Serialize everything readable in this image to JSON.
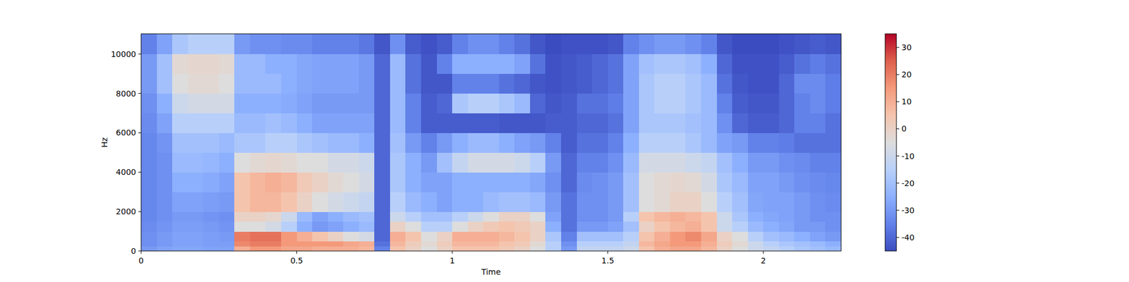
{
  "chart_data": {
    "type": "heatmap",
    "xlabel": "Time",
    "ylabel": "Hz",
    "xlim": [
      0,
      2.25
    ],
    "ylim": [
      0,
      11025
    ],
    "xticks": [
      0,
      0.5,
      1,
      1.5,
      2
    ],
    "yticks": [
      0,
      2000,
      4000,
      6000,
      8000,
      10000
    ],
    "x_edges": [
      0,
      0.05,
      0.1,
      0.15,
      0.2,
      0.25,
      0.3,
      0.35,
      0.4,
      0.45,
      0.5,
      0.55,
      0.6,
      0.65,
      0.7,
      0.75,
      0.8,
      0.85,
      0.9,
      0.95,
      1,
      1.05,
      1.1,
      1.15,
      1.2,
      1.25,
      1.3,
      1.35,
      1.4,
      1.45,
      1.5,
      1.55,
      1.6,
      1.65,
      1.7,
      1.75,
      1.8,
      1.85,
      1.9,
      1.95,
      2,
      2.05,
      2.1,
      2.15,
      2.2,
      2.25
    ],
    "y_edges": [
      0,
      250,
      500,
      1000,
      1500,
      2000,
      3000,
      4000,
      5000,
      6000,
      7000,
      8000,
      9000,
      10000,
      11025
    ],
    "cells": [
      [
        -30,
        -28,
        -27,
        -27,
        -28,
        -28,
        10,
        15,
        15,
        12,
        12,
        10,
        10,
        10,
        8,
        -35,
        5,
        0,
        -5,
        0,
        5,
        5,
        5,
        3,
        0,
        -5,
        -15,
        -30,
        -12,
        -12,
        -12,
        -10,
        5,
        10,
        12,
        12,
        8,
        0,
        -5,
        -10,
        -12,
        -15,
        -18,
        -20,
        -22
      ],
      [
        -32,
        -30,
        -28,
        -28,
        -29,
        -29,
        18,
        20,
        20,
        15,
        15,
        15,
        15,
        12,
        10,
        -38,
        8,
        2,
        -3,
        2,
        8,
        8,
        8,
        5,
        3,
        -3,
        -15,
        -32,
        -15,
        -15,
        -15,
        -12,
        8,
        12,
        15,
        15,
        10,
        2,
        -3,
        -10,
        -15,
        -18,
        -20,
        -22,
        -25
      ],
      [
        -32,
        -30,
        -28,
        -28,
        -29,
        -30,
        20,
        22,
        22,
        15,
        10,
        5,
        0,
        -5,
        -8,
        -40,
        10,
        5,
        -5,
        0,
        10,
        10,
        10,
        8,
        5,
        0,
        -18,
        -35,
        -20,
        -20,
        -20,
        -15,
        5,
        10,
        15,
        18,
        12,
        0,
        -5,
        -15,
        -20,
        -22,
        -25,
        -28,
        -30
      ],
      [
        -33,
        -31,
        -29,
        -29,
        -30,
        -31,
        -5,
        -5,
        -8,
        -15,
        -25,
        -30,
        -28,
        -25,
        -22,
        -40,
        0,
        -5,
        -15,
        -15,
        -5,
        0,
        3,
        5,
        3,
        0,
        -25,
        -38,
        -30,
        -30,
        -28,
        -20,
        0,
        5,
        8,
        10,
        5,
        -10,
        -15,
        -22,
        -25,
        -27,
        -30,
        -30,
        -32
      ],
      [
        -34,
        -32,
        -30,
        -30,
        -31,
        -32,
        0,
        0,
        -2,
        -10,
        -22,
        -28,
        -25,
        -22,
        -20,
        -40,
        -10,
        -15,
        -20,
        -20,
        -15,
        -10,
        -5,
        0,
        0,
        -5,
        -28,
        -38,
        -32,
        -32,
        -30,
        -15,
        5,
        8,
        10,
        8,
        5,
        -10,
        -18,
        -25,
        -27,
        -28,
        -30,
        -32,
        -32
      ],
      [
        -34,
        -32,
        -28,
        -28,
        -29,
        -30,
        5,
        8,
        8,
        5,
        0,
        -5,
        -8,
        -10,
        -12,
        -40,
        -15,
        -22,
        -25,
        -28,
        -25,
        -25,
        -22,
        -20,
        -20,
        -22,
        -30,
        -38,
        -32,
        -32,
        -30,
        -20,
        -5,
        -3,
        0,
        0,
        -5,
        -15,
        -20,
        -27,
        -28,
        -28,
        -30,
        -32,
        -33
      ],
      [
        -34,
        -32,
        -25,
        -25,
        -26,
        -28,
        5,
        8,
        10,
        8,
        3,
        0,
        -3,
        -5,
        -8,
        -40,
        -18,
        -25,
        -28,
        -28,
        -25,
        -25,
        -25,
        -25,
        -25,
        -27,
        -32,
        -40,
        -33,
        -32,
        -30,
        -20,
        -5,
        -3,
        -2,
        -3,
        -8,
        -18,
        -22,
        -28,
        -28,
        -30,
        -32,
        -33,
        -34
      ],
      [
        -34,
        -32,
        -22,
        -22,
        -23,
        -25,
        -5,
        -3,
        -2,
        -3,
        -5,
        -5,
        -8,
        -8,
        -10,
        -40,
        -18,
        -25,
        -30,
        -20,
        -12,
        -8,
        -8,
        -8,
        -10,
        -15,
        -30,
        -40,
        -35,
        -35,
        -32,
        -22,
        -8,
        -8,
        -8,
        -10,
        -12,
        -20,
        -25,
        -30,
        -30,
        -32,
        -33,
        -35,
        -35
      ],
      [
        -34,
        -31,
        -20,
        -20,
        -20,
        -22,
        -18,
        -18,
        -15,
        -15,
        -18,
        -20,
        -22,
        -22,
        -25,
        -40,
        -20,
        -30,
        -35,
        -30,
        -25,
        -22,
        -22,
        -25,
        -28,
        -30,
        -35,
        -42,
        -38,
        -38,
        -35,
        -25,
        -15,
        -15,
        -15,
        -18,
        -22,
        -28,
        -30,
        -35,
        -35,
        -36,
        -38,
        -38,
        -38
      ],
      [
        -33,
        -28,
        -15,
        -15,
        -15,
        -15,
        -22,
        -22,
        -20,
        -22,
        -25,
        -28,
        -28,
        -28,
        -28,
        -40,
        -22,
        -35,
        -42,
        -42,
        -42,
        -42,
        -42,
        -43,
        -43,
        -43,
        -42,
        -42,
        -40,
        -40,
        -38,
        -28,
        -18,
        -18,
        -18,
        -20,
        -22,
        -32,
        -40,
        -42,
        -42,
        -40,
        -35,
        -35,
        -38
      ],
      [
        -32,
        -25,
        -10,
        -8,
        -8,
        -8,
        -25,
        -25,
        -25,
        -26,
        -28,
        -30,
        -30,
        -30,
        -30,
        -40,
        -22,
        -35,
        -42,
        -40,
        -18,
        -15,
        -15,
        -18,
        -22,
        -40,
        -43,
        -42,
        -38,
        -38,
        -36,
        -28,
        -18,
        -15,
        -15,
        -18,
        -22,
        -35,
        -42,
        -43,
        -43,
        -40,
        -35,
        -33,
        -36
      ],
      [
        -30,
        -20,
        -5,
        -3,
        -3,
        -5,
        -22,
        -22,
        -22,
        -25,
        -27,
        -28,
        -28,
        -28,
        -30,
        -40,
        -22,
        -38,
        -43,
        -43,
        -35,
        -35,
        -35,
        -38,
        -40,
        -43,
        -44,
        -43,
        -42,
        -40,
        -38,
        -28,
        -18,
        -15,
        -15,
        -18,
        -22,
        -38,
        -43,
        -44,
        -44,
        -40,
        -33,
        -33,
        -36
      ],
      [
        -30,
        -20,
        -3,
        -2,
        -2,
        -3,
        -22,
        -22,
        -25,
        -25,
        -27,
        -28,
        -28,
        -28,
        -30,
        -40,
        -22,
        -38,
        -43,
        -35,
        -25,
        -25,
        -25,
        -25,
        -28,
        -38,
        -44,
        -43,
        -42,
        -40,
        -38,
        -28,
        -20,
        -18,
        -18,
        -20,
        -25,
        -40,
        -44,
        -44,
        -44,
        -42,
        -38,
        -36,
        -38
      ],
      [
        -35,
        -28,
        -18,
        -15,
        -15,
        -15,
        -30,
        -32,
        -32,
        -33,
        -33,
        -35,
        -35,
        -35,
        -37,
        -43,
        -32,
        -42,
        -44,
        -42,
        -35,
        -32,
        -32,
        -35,
        -38,
        -43,
        -45,
        -44,
        -44,
        -44,
        -43,
        -35,
        -32,
        -30,
        -30,
        -32,
        -35,
        -43,
        -45,
        -45,
        -45,
        -44,
        -43,
        -42,
        -43
      ]
    ],
    "colorbar": {
      "range": [
        -45,
        35
      ],
      "ticks": [
        -40,
        -30,
        -20,
        -10,
        0,
        10,
        20,
        30
      ]
    }
  }
}
